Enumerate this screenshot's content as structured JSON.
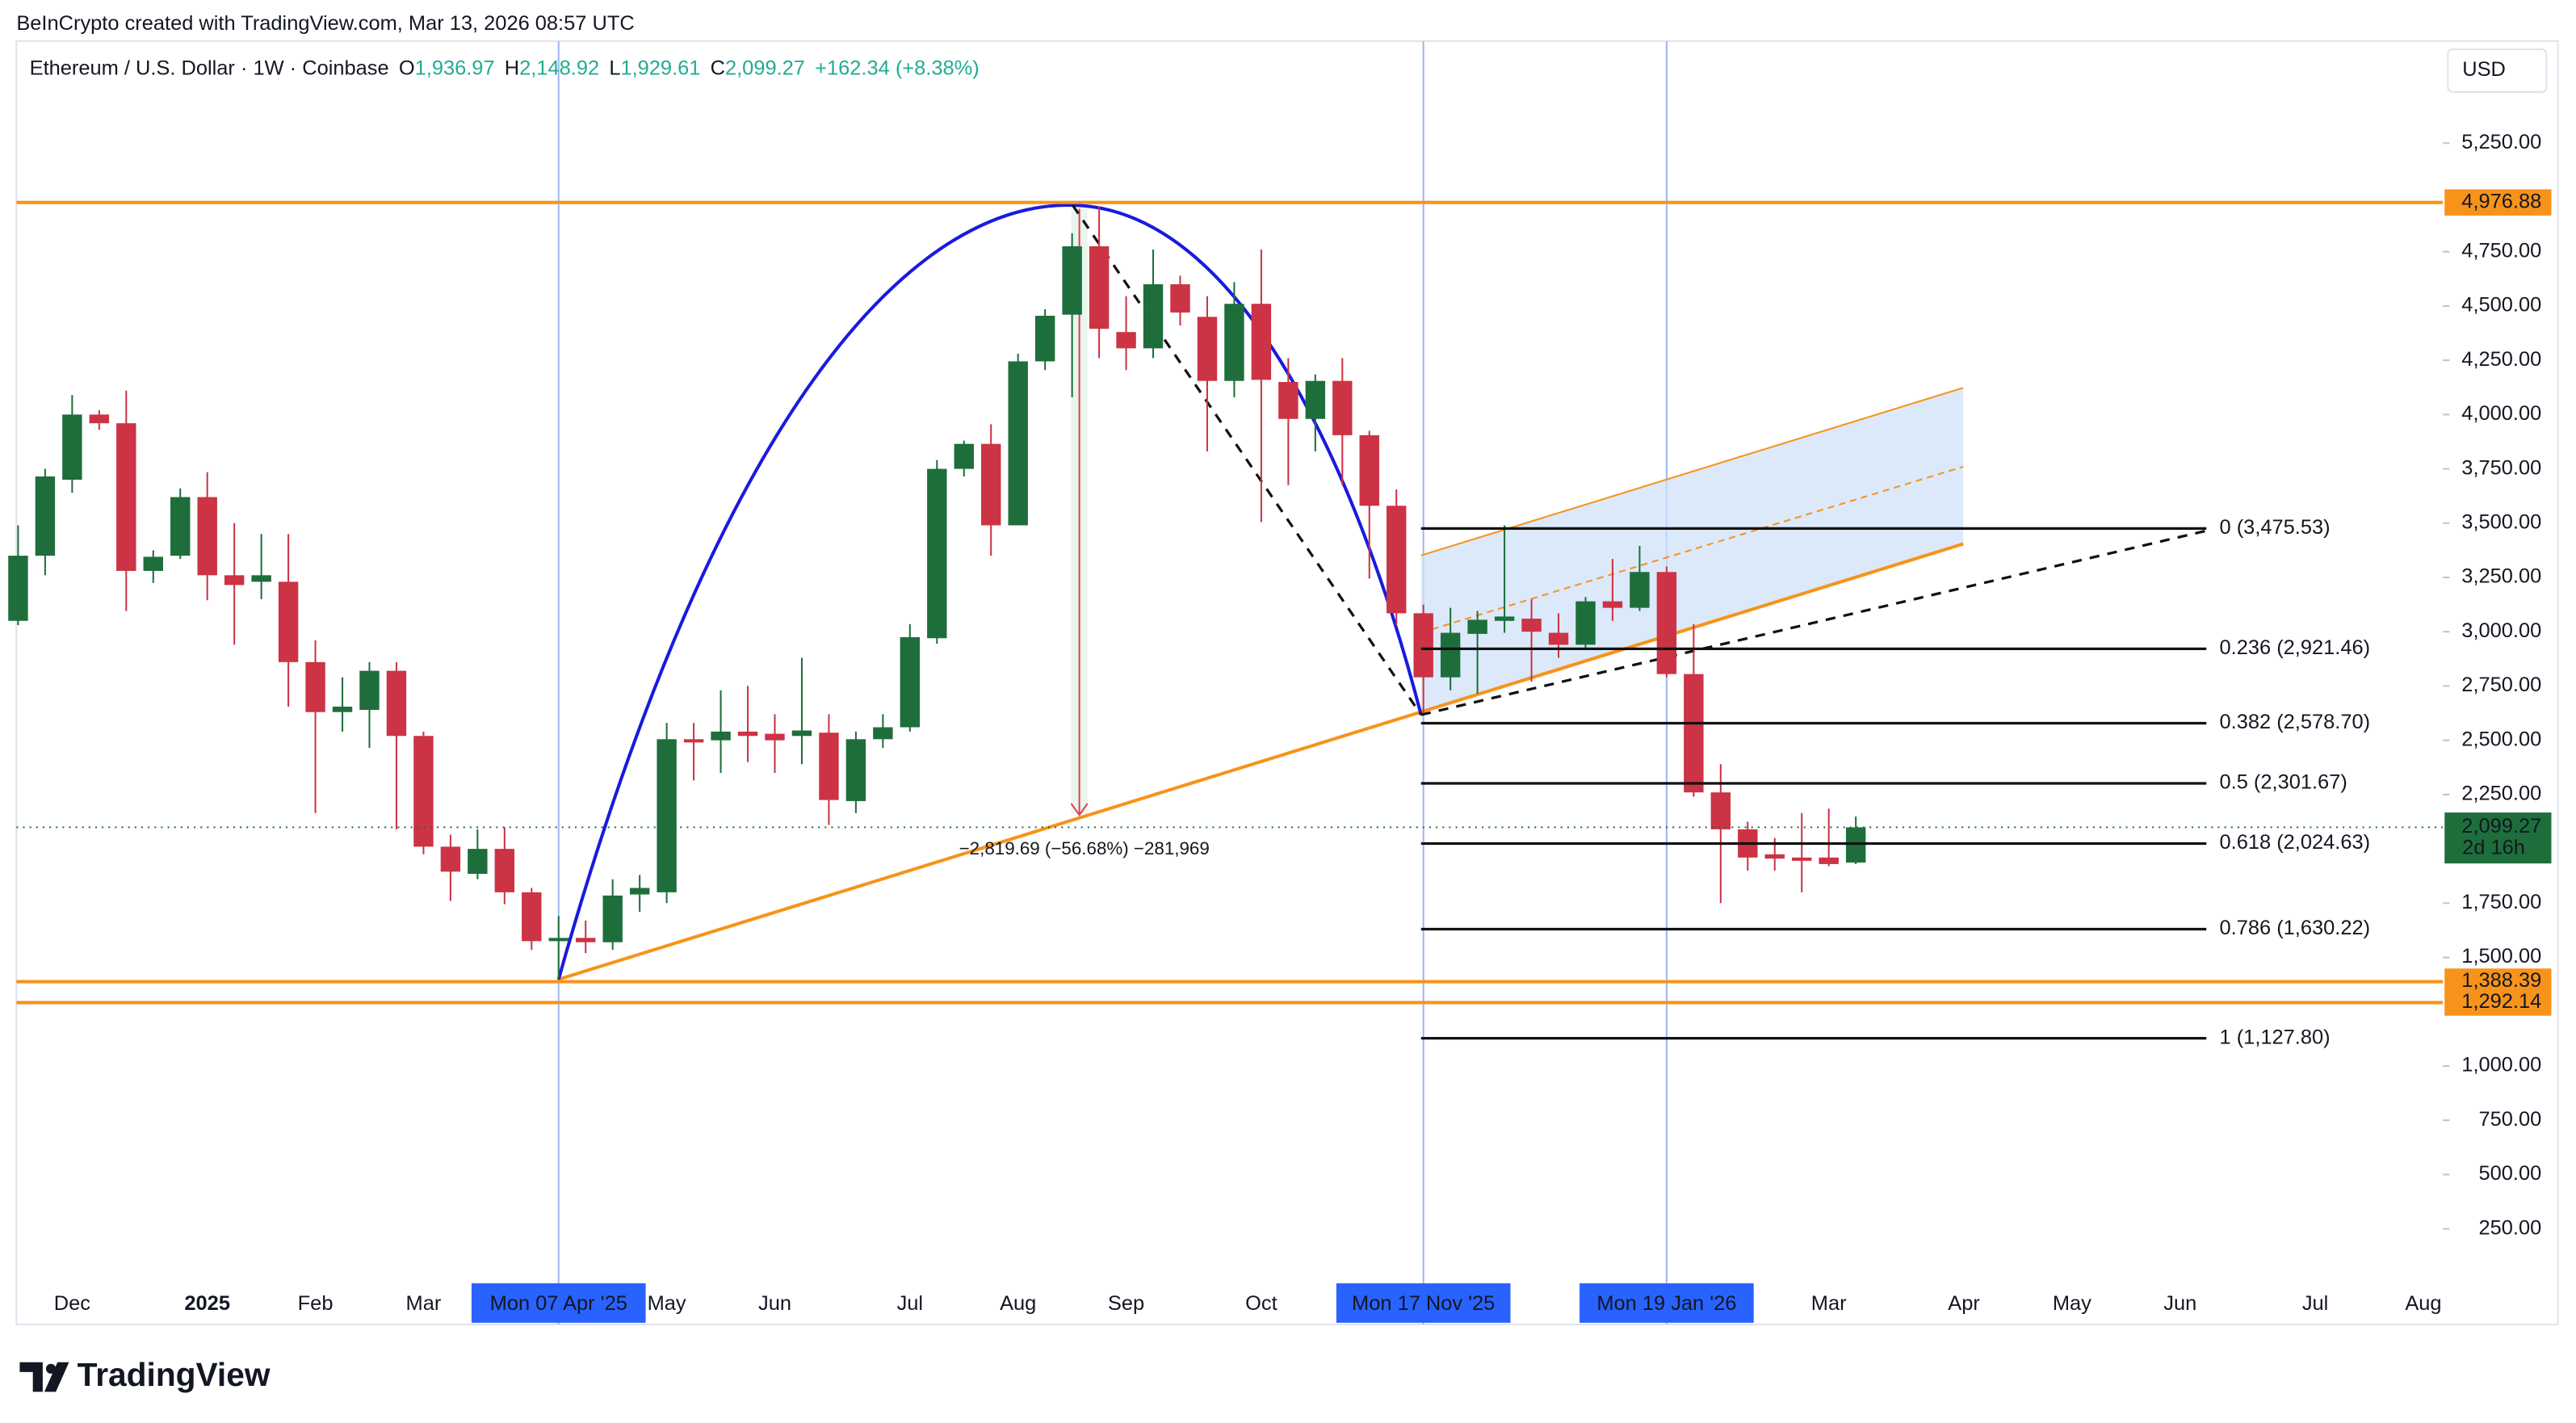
{
  "header": "BeInCrypto created with TradingView.com, Mar 13, 2026 08:57 UTC",
  "legend": {
    "symbol": "Ethereum / U.S. Dollar · 1W · Coinbase",
    "open_key": "O",
    "open": "1,936.97",
    "high_key": "H",
    "high": "2,148.92",
    "low_key": "L",
    "low": "1,929.61",
    "close_key": "C",
    "close": "2,099.27",
    "change": "+162.34 (+8.38%)"
  },
  "currency": "USD",
  "brand": "TradingView",
  "chart_data": {
    "type": "candlestick",
    "categories": [
      null,
      null,
      "Dec",
      null,
      null,
      null,
      null,
      "2025",
      null,
      null,
      null,
      "Feb",
      null,
      null,
      null,
      "Mar",
      null,
      null,
      null,
      null,
      "Mon 07 Apr '25",
      null,
      null,
      null,
      "May",
      null,
      null,
      null,
      "Jun",
      null,
      null,
      null,
      null,
      "Jul",
      null,
      null,
      null,
      "Aug",
      null,
      null,
      null,
      "Sep",
      null,
      null,
      null,
      null,
      "Oct",
      null,
      null,
      null,
      null,
      null,
      "Mon 17 Nov '25",
      null,
      null,
      null,
      null,
      null,
      null,
      null,
      null,
      "Mon 19 Jan '26",
      null,
      null,
      null,
      null,
      null,
      "Mar",
      null,
      null,
      null,
      null,
      "Apr",
      null,
      null,
      null,
      "May",
      null,
      null,
      null,
      "Jun",
      null,
      null,
      null,
      null,
      "Jul",
      null,
      null,
      null,
      "Aug"
    ],
    "series": [
      {
        "up_color": "#1e6e3c",
        "down_color": "#cc3344",
        "open": [
          3050,
          3350,
          3700,
          4000,
          3960,
          3280,
          3350,
          3620,
          3260,
          3230,
          3230,
          2860,
          2630,
          2640,
          2820,
          2520,
          2010,
          1885,
          2000,
          1800,
          1575,
          1590,
          1570,
          1790,
          1800,
          2505,
          2500,
          2540,
          2530,
          2520,
          2535,
          2220,
          2505,
          2560,
          2970,
          3750,
          3865,
          3490,
          4245,
          4460,
          4775,
          4380,
          4305,
          4600,
          4450,
          4155,
          4510,
          4150,
          3980,
          4155,
          3905,
          3580,
          3085,
          2790,
          2990,
          3050,
          3060,
          2995,
          2940,
          3140,
          3110,
          3275,
          2805,
          2260,
          2090,
          1975,
          1960,
          1960,
          1936.97,
          null,
          null,
          null,
          null,
          null,
          null,
          null,
          null,
          null,
          null,
          null,
          null,
          null,
          null,
          null,
          null,
          null,
          null,
          null,
          null,
          null
        ],
        "high": [
          3490,
          3750,
          4090,
          4020,
          4110,
          3375,
          3660,
          3735,
          3500,
          3450,
          3450,
          2960,
          2790,
          2860,
          2860,
          2540,
          2065,
          2090,
          2100,
          1820,
          1690,
          1670,
          1860,
          1880,
          2580,
          2580,
          2730,
          2750,
          2620,
          2880,
          2620,
          2540,
          2620,
          3035,
          3790,
          3880,
          3955,
          4280,
          4485,
          4835,
          4960,
          4545,
          4760,
          4640,
          4545,
          4610,
          4760,
          4260,
          4185,
          4260,
          3925,
          3655,
          3125,
          3110,
          3095,
          3490,
          3150,
          3085,
          3160,
          3335,
          3395,
          3300,
          3035,
          2390,
          2125,
          2050,
          2165,
          2185,
          2148.92,
          null,
          null,
          null,
          null,
          null,
          null,
          null,
          null,
          null,
          null,
          null,
          null,
          null,
          null,
          null,
          null,
          null,
          null,
          null,
          null,
          null
        ],
        "low": [
          3030,
          3260,
          3640,
          3930,
          3095,
          3225,
          3335,
          3145,
          2940,
          3150,
          2655,
          2165,
          2540,
          2465,
          2090,
          1975,
          1760,
          1860,
          1745,
          1535,
          1390,
          1520,
          1535,
          1710,
          1750,
          2315,
          2350,
          2400,
          2350,
          2390,
          2110,
          2165,
          2465,
          2540,
          2945,
          3715,
          3350,
          3490,
          4205,
          4080,
          4260,
          4205,
          4260,
          4410,
          3830,
          4080,
          3505,
          3675,
          3830,
          3675,
          3245,
          3030,
          2625,
          2730,
          2715,
          2995,
          2770,
          2880,
          2920,
          3050,
          3095,
          2790,
          2240,
          1750,
          1900,
          1900,
          1800,
          1920,
          1929.61,
          null,
          null,
          null,
          null,
          null,
          null,
          null,
          null,
          null,
          null,
          null,
          null,
          null,
          null,
          null,
          null,
          null,
          null,
          null,
          null,
          null
        ],
        "close": [
          3350,
          3715,
          4000,
          3960,
          3280,
          3345,
          3620,
          3260,
          3215,
          3260,
          2860,
          2630,
          2655,
          2820,
          2520,
          2010,
          1895,
          2000,
          1800,
          1575,
          1590,
          1570,
          1785,
          1820,
          2505,
          2490,
          2540,
          2520,
          2500,
          2545,
          2225,
          2505,
          2560,
          2975,
          3750,
          3865,
          3490,
          4245,
          4455,
          4775,
          4395,
          4305,
          4600,
          4470,
          4155,
          4510,
          4160,
          3980,
          4155,
          3905,
          3580,
          3085,
          2790,
          2995,
          3055,
          3070,
          3000,
          2940,
          3140,
          3110,
          3275,
          2805,
          2260,
          2090,
          1960,
          1955,
          1945,
          1930,
          2099.27,
          null,
          null,
          null,
          null,
          null,
          null,
          null,
          null,
          null,
          null,
          null,
          null,
          null,
          null,
          null,
          null,
          null,
          null,
          null,
          null,
          null
        ]
      }
    ],
    "ylim": [
      -190,
      5720
    ],
    "yticks": [
      {
        "value": 250,
        "label": "250.00"
      },
      {
        "value": 500,
        "label": "500.00"
      },
      {
        "value": 750,
        "label": "750.00"
      },
      {
        "value": 1000,
        "label": "1,000.00"
      },
      {
        "value": 1500,
        "label": "1,500.00"
      },
      {
        "value": 1750,
        "label": "1,750.00"
      },
      {
        "value": 2250,
        "label": "2,250.00"
      },
      {
        "value": 2500,
        "label": "2,500.00"
      },
      {
        "value": 2750,
        "label": "2,750.00"
      },
      {
        "value": 3000,
        "label": "3,000.00"
      },
      {
        "value": 3250,
        "label": "3,250.00"
      },
      {
        "value": 3500,
        "label": "3,500.00"
      },
      {
        "value": 3750,
        "label": "3,750.00"
      },
      {
        "value": 4000,
        "label": "4,000.00"
      },
      {
        "value": 4250,
        "label": "4,250.00"
      },
      {
        "value": 4500,
        "label": "4,500.00"
      },
      {
        "value": 4750,
        "label": "4,750.00"
      },
      {
        "value": 5250,
        "label": "5,250.00"
      }
    ],
    "levels": [
      {
        "value": 4976.88,
        "label": "4,976.88",
        "color": "#f7931a"
      },
      {
        "value": 1388.39,
        "label": "1,388.39",
        "color": "#f7931a"
      },
      {
        "value": 1292.14,
        "label": "1,292.14",
        "color": "#f7931a"
      }
    ],
    "last_price": {
      "value": 2099.27,
      "label": "2,099.27",
      "countdown": "2d 16h",
      "color": "#1e6e3c"
    },
    "fib_levels": [
      {
        "value": 3475.53,
        "label": "0 (3,475.53)"
      },
      {
        "value": 2921.46,
        "label": "0.236 (2,921.46)"
      },
      {
        "value": 2578.7,
        "label": "0.382 (2,578.70)"
      },
      {
        "value": 2301.67,
        "label": "0.5 (2,301.67)"
      },
      {
        "value": 2024.63,
        "label": "0.618 (2,024.63)"
      },
      {
        "value": 1630.22,
        "label": "0.786 (1,630.22)"
      },
      {
        "value": 1127.8,
        "label": "1 (1,127.80)"
      }
    ],
    "annotation": "−2,819.69 (−56.68%) −281,969"
  }
}
